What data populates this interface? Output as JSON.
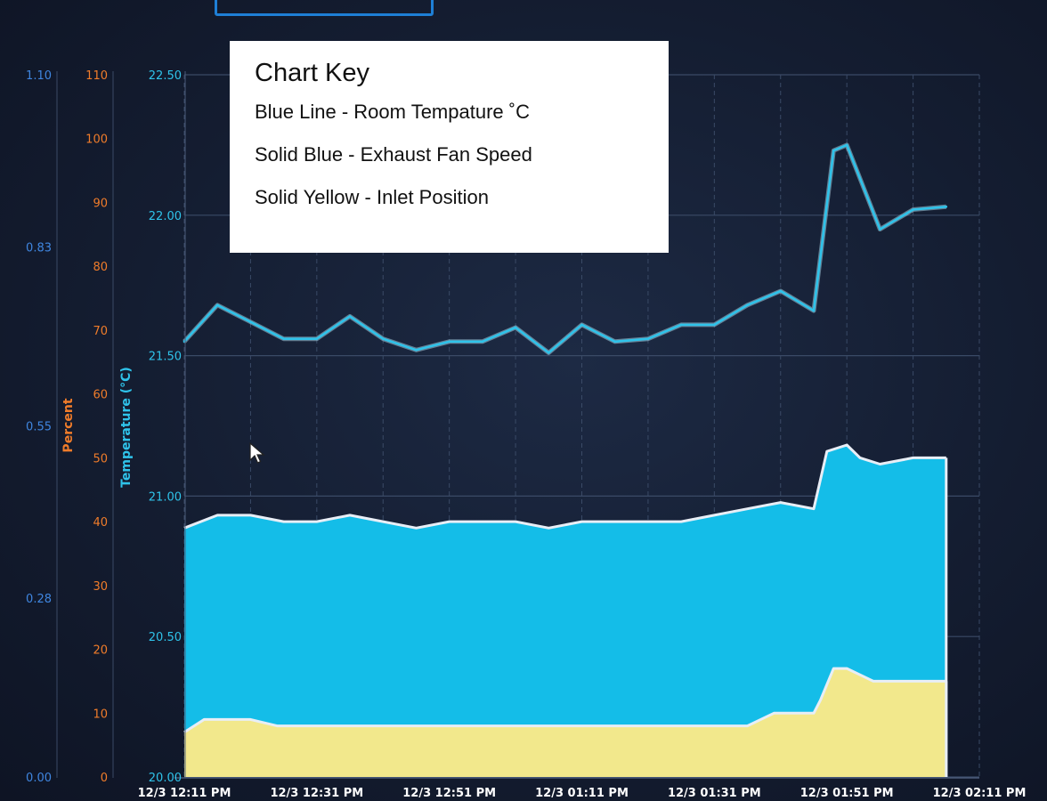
{
  "chart_data": {
    "type": "area",
    "x_labels": [
      "12/3 12:11 PM",
      "12/3 12:31 PM",
      "12/3 12:51 PM",
      "12/3 01:11 PM",
      "12/3 01:31 PM",
      "12/3 01:51 PM",
      "12/3 02:11 PM"
    ],
    "axes": {
      "fan": {
        "ticks": [
          "0.00",
          "0.28",
          "0.55",
          "0.83",
          "1.10"
        ],
        "range": [
          0,
          1.1
        ],
        "color": "#3f86e0"
      },
      "percent": {
        "label": "Percent",
        "ticks": [
          "0",
          "10",
          "20",
          "30",
          "40",
          "50",
          "60",
          "70",
          "80",
          "90",
          "100",
          "110"
        ],
        "range": [
          0,
          110
        ],
        "color": "#f07c2a"
      },
      "temperature": {
        "label": "Temperature (°C)",
        "ticks": [
          "20.00",
          "20.50",
          "21.00",
          "21.50",
          "22.00",
          "22.50"
        ],
        "range": [
          20,
          22.5
        ],
        "color": "#2fc3ea"
      }
    },
    "series": [
      {
        "name": "Room Tempature ˚C",
        "kind": "line",
        "axis": "temperature",
        "color": "#2fc3ea",
        "time_minutes": [
          0,
          5,
          10,
          15,
          20,
          25,
          30,
          35,
          40,
          45,
          50,
          55,
          60,
          65,
          70,
          75,
          80,
          85,
          90,
          95,
          98,
          100,
          105,
          110,
          115
        ],
        "values": [
          21.55,
          21.68,
          21.62,
          21.56,
          21.56,
          21.64,
          21.56,
          21.52,
          21.55,
          21.55,
          21.6,
          21.51,
          21.61,
          21.55,
          21.56,
          21.61,
          21.61,
          21.68,
          21.73,
          21.66,
          22.23,
          22.25,
          21.95,
          22.02,
          22.03
        ]
      },
      {
        "name": "Exhaust Fan Speed",
        "kind": "area",
        "axis": "fan",
        "color": "#14bde8",
        "time_minutes": [
          0,
          5,
          10,
          15,
          20,
          25,
          30,
          35,
          40,
          45,
          50,
          55,
          60,
          65,
          70,
          75,
          80,
          85,
          90,
          95,
          97,
          100,
          102,
          105,
          110,
          115
        ],
        "values": [
          0.39,
          0.41,
          0.41,
          0.4,
          0.4,
          0.41,
          0.4,
          0.39,
          0.4,
          0.4,
          0.4,
          0.39,
          0.4,
          0.4,
          0.4,
          0.4,
          0.41,
          0.42,
          0.43,
          0.42,
          0.51,
          0.52,
          0.5,
          0.49,
          0.5,
          0.5
        ]
      },
      {
        "name": "Inlet Position",
        "kind": "area",
        "axis": "percent",
        "color": "#f2e88c",
        "time_minutes": [
          0,
          3,
          10,
          14,
          20,
          30,
          40,
          50,
          60,
          70,
          80,
          85,
          89,
          95,
          96,
          98,
          100,
          104,
          110,
          115
        ],
        "values": [
          7,
          9,
          9,
          8,
          8,
          8,
          8,
          8,
          8,
          8,
          8,
          8,
          10,
          10,
          12,
          17,
          17,
          15,
          15,
          15
        ]
      }
    ]
  },
  "key": {
    "title": "Chart Key",
    "items": [
      "Blue Line - Room Tempature ˚C",
      "Solid Blue - Exhaust Fan Speed",
      "Solid Yellow - Inlet Position"
    ]
  }
}
